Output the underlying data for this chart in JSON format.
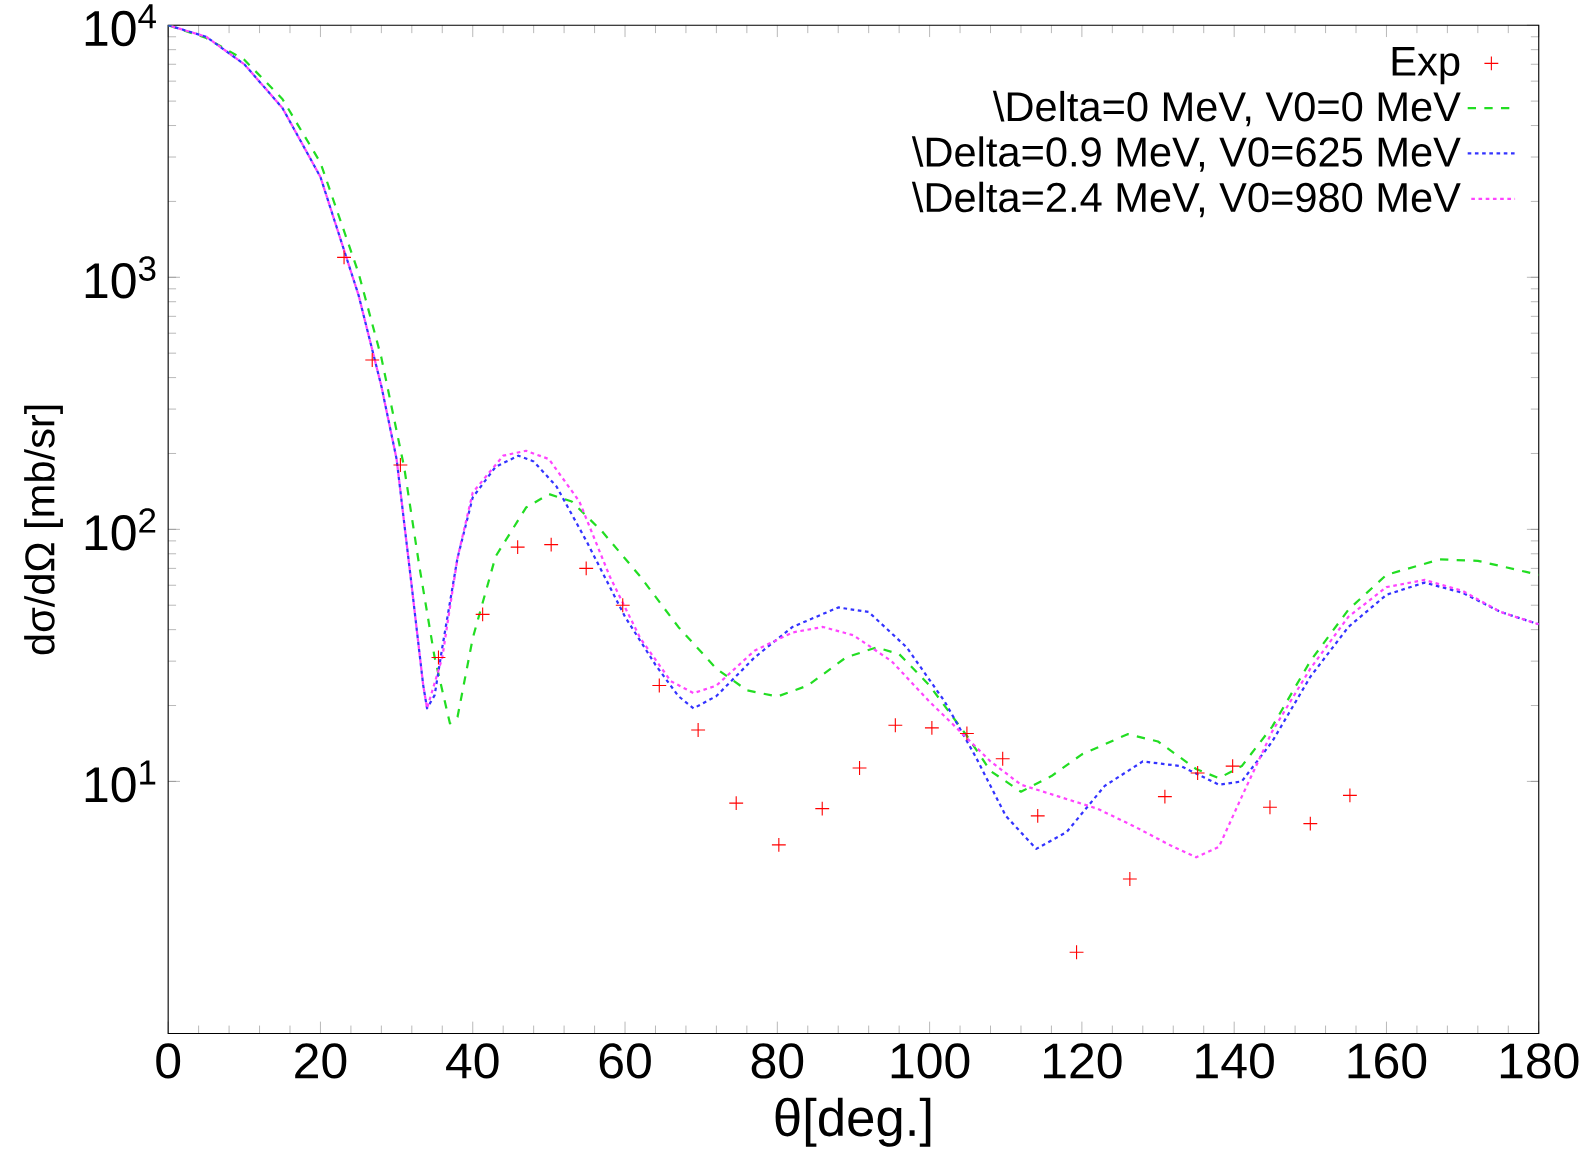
{
  "chart_data": {
    "type": "line",
    "xlabel": "θ[deg.]",
    "ylabel": "dσ/dΩ [mb/sr]",
    "xlim": [
      0,
      180
    ],
    "xticks": [
      0,
      20,
      40,
      60,
      80,
      100,
      120,
      140,
      160,
      180
    ],
    "ylim": [
      1,
      10000
    ],
    "yticks": [
      {
        "value": 10,
        "label": "10$^{1}$"
      },
      {
        "value": 100,
        "label": "10$^{2}$"
      },
      {
        "value": 1000,
        "label": "10$^{3}$"
      },
      {
        "value": 10000,
        "label": "10$^{4}$"
      }
    ],
    "log": "y",
    "legend": "top right",
    "series": [
      {
        "name": "Exp",
        "type": "scatter",
        "marker": "cross",
        "color": "#ff0000",
        "x": [
          23.1,
          26.8,
          30.5,
          35.5,
          41.3,
          45.9,
          50.3,
          54.9,
          59.7,
          64.5,
          69.6,
          74.6,
          80.2,
          85.9,
          90.8,
          95.5,
          100.3,
          104.9,
          109.6,
          114.2,
          119.3,
          126.3,
          130.9,
          135.2,
          139.8,
          144.7,
          150.0,
          155.2
        ],
        "values": [
          1200,
          470,
          180,
          31,
          46,
          85,
          87,
          70,
          50,
          24,
          16,
          8.2,
          5.6,
          7.8,
          11.3,
          16.7,
          16.3,
          15.5,
          12.3,
          7.3,
          2.1,
          4.1,
          8.7,
          10.8,
          11.5,
          7.9,
          6.8,
          8.8
        ]
      },
      {
        "name": "\\Delta=0 MeV, V0=0 MeV",
        "marker": "none",
        "line_style": "dashed",
        "color": "#22dd22",
        "x": [
          0,
          5,
          10,
          15,
          20,
          25,
          28,
          31,
          33,
          35,
          37,
          38,
          40,
          43,
          47,
          50,
          53,
          57,
          62,
          67,
          72,
          76,
          80,
          84,
          89,
          93,
          96,
          100,
          105,
          108,
          112,
          116,
          120,
          126,
          130,
          135,
          138,
          141,
          145,
          150,
          155,
          160,
          167,
          172,
          180
        ],
        "values": [
          10000,
          8900,
          7300,
          5100,
          2850,
          1040,
          480,
          176,
          71,
          31,
          17,
          18,
          37,
          78,
          122,
          138,
          129,
          98,
          65,
          41,
          28,
          23,
          21.7,
          24,
          31,
          34,
          32,
          24,
          15,
          11,
          9.1,
          10.5,
          12.8,
          15.4,
          14.4,
          11.2,
          10.3,
          11.5,
          16.5,
          30,
          48,
          66,
          76,
          75,
          66
        ]
      },
      {
        "name": "\\Delta=0.9 MeV, V0=625 MeV",
        "marker": "none",
        "line_style": "dotted",
        "color": "#3333ff",
        "x": [
          0,
          5,
          10,
          15,
          20,
          25,
          28,
          30,
          32,
          33.5,
          34,
          35,
          36,
          38,
          40,
          43,
          46,
          48,
          51,
          55,
          60,
          64,
          67,
          69,
          72,
          77,
          82,
          88,
          92,
          97,
          102,
          106,
          110,
          114,
          118,
          123,
          128,
          133,
          138,
          141,
          145,
          150,
          155,
          160,
          165,
          170,
          175,
          180
        ],
        "values": [
          10000,
          9000,
          7000,
          4700,
          2500,
          850,
          370,
          190,
          59,
          24,
          19.5,
          22,
          34,
          77,
          134,
          177,
          196,
          186,
          148,
          89,
          45,
          29,
          21.8,
          19.5,
          21.8,
          31,
          41,
          49,
          47,
          34,
          20.7,
          12.6,
          7.3,
          5.4,
          6.3,
          9.6,
          12,
          11.5,
          9.7,
          10,
          14.4,
          26,
          41,
          55,
          61.5,
          56,
          47,
          42
        ]
      },
      {
        "name": "\\Delta=2.4 MeV, V0=980 MeV",
        "marker": "none",
        "line_style": "dotted",
        "color": "#ff44ff",
        "x": [
          0,
          5,
          10,
          15,
          20,
          25,
          28,
          30,
          32,
          33.5,
          34,
          36,
          38,
          40,
          44,
          47,
          50,
          54,
          58,
          62,
          66,
          69,
          72,
          77,
          82,
          86,
          90,
          95,
          100,
          104,
          108,
          112,
          117,
          122,
          127,
          132,
          135,
          138,
          141,
          145,
          150,
          155,
          160,
          165,
          170,
          175,
          180
        ],
        "values": [
          10000,
          9000,
          7000,
          4700,
          2500,
          850,
          370,
          190,
          59,
          24,
          19.5,
          31,
          77,
          140,
          196,
          205,
          190,
          129,
          65,
          37,
          25,
          22.4,
          24,
          33,
          39,
          41,
          38,
          30,
          20.7,
          15.8,
          12,
          9.7,
          8.7,
          7.8,
          6.6,
          5.5,
          5,
          5.5,
          8.7,
          15.8,
          28,
          45,
          59,
          63,
          57,
          47,
          42
        ]
      }
    ]
  }
}
